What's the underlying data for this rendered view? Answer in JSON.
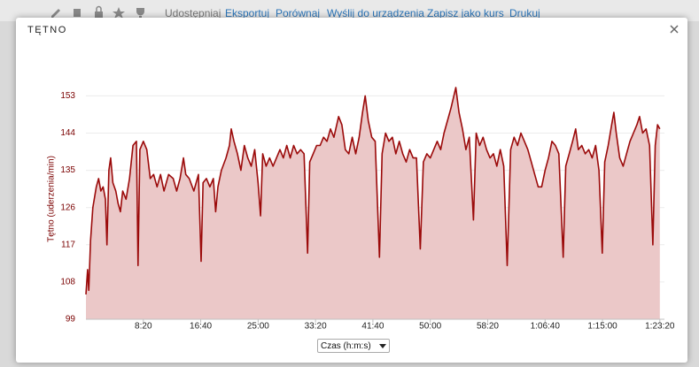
{
  "toolbar": {
    "items": [
      "Udostępniaj",
      "Eksportuj",
      "Porównaj",
      "Wyślij do urządzenia",
      "Zapisz jako kurs",
      "Drukuj"
    ]
  },
  "modal": {
    "title": "TĘTNO"
  },
  "x_selector": "Czas (h:m:s)",
  "chart_data": {
    "type": "area",
    "y_label": "Tętno (uderzenia/min)",
    "color": "#9b0a0a",
    "fill": "#ebc8c8",
    "grid": true,
    "xlim": [
      0,
      5040
    ],
    "ylim": [
      99,
      158
    ],
    "yticks": [
      99,
      108,
      117,
      126,
      135,
      144,
      153
    ],
    "xticks": [
      {
        "value": 500,
        "label": "8:20"
      },
      {
        "value": 1000,
        "label": "16:40"
      },
      {
        "value": 1500,
        "label": "25:00"
      },
      {
        "value": 2000,
        "label": "33:20"
      },
      {
        "value": 2500,
        "label": "41:40"
      },
      {
        "value": 3000,
        "label": "50:00"
      },
      {
        "value": 3500,
        "label": "58:20"
      },
      {
        "value": 4000,
        "label": "1:06:40"
      },
      {
        "value": 4500,
        "label": "1:15:00"
      },
      {
        "value": 5000,
        "label": "1:23:20"
      }
    ],
    "x": [
      0,
      15,
      25,
      40,
      60,
      90,
      110,
      130,
      150,
      170,
      183,
      200,
      215,
      235,
      260,
      280,
      300,
      320,
      350,
      380,
      410,
      440,
      454,
      470,
      500,
      530,
      560,
      590,
      620,
      650,
      680,
      720,
      760,
      790,
      820,
      850,
      870,
      900,
      940,
      980,
      1003,
      1020,
      1050,
      1080,
      1110,
      1130,
      1150,
      1180,
      1220,
      1250,
      1266,
      1290,
      1320,
      1350,
      1380,
      1410,
      1440,
      1470,
      1500,
      1521,
      1540,
      1570,
      1600,
      1630,
      1660,
      1690,
      1720,
      1750,
      1780,
      1810,
      1840,
      1870,
      1900,
      1931,
      1950,
      1980,
      2010,
      2040,
      2070,
      2100,
      2130,
      2160,
      2201,
      2230,
      2260,
      2290,
      2320,
      2350,
      2380,
      2410,
      2433,
      2460,
      2490,
      2520,
      2557,
      2580,
      2610,
      2640,
      2670,
      2700,
      2730,
      2760,
      2790,
      2820,
      2850,
      2880,
      2913,
      2940,
      2970,
      3000,
      3030,
      3060,
      3090,
      3120,
      3150,
      3180,
      3222,
      3250,
      3280,
      3310,
      3340,
      3376,
      3400,
      3430,
      3460,
      3490,
      3520,
      3550,
      3580,
      3610,
      3640,
      3670,
      3700,
      3730,
      3760,
      3790,
      3820,
      3850,
      3880,
      3910,
      3940,
      3970,
      4000,
      4030,
      4060,
      4090,
      4120,
      4158,
      4180,
      4210,
      4240,
      4267,
      4290,
      4320,
      4350,
      4380,
      4410,
      4440,
      4470,
      4498,
      4520,
      4550,
      4580,
      4599,
      4620,
      4650,
      4680,
      4710,
      4740,
      4770,
      4800,
      4823,
      4850,
      4880,
      4910,
      4939,
      4960,
      4980,
      5000
    ],
    "values": [
      105,
      111,
      106,
      118,
      126,
      131,
      133,
      130,
      131,
      128,
      117,
      135,
      138,
      132,
      130,
      127,
      125,
      130,
      128,
      133,
      141,
      142,
      112,
      140,
      142,
      140,
      133,
      134,
      131,
      134,
      130,
      134,
      133,
      130,
      133,
      138,
      134,
      133,
      130,
      134,
      113,
      132,
      133,
      131,
      133,
      125,
      131,
      135,
      138,
      141,
      145,
      142,
      139,
      135,
      141,
      138,
      136,
      140,
      132,
      124,
      139,
      136,
      138,
      136,
      138,
      140,
      138,
      141,
      138,
      141,
      139,
      140,
      139,
      115,
      137,
      139,
      141,
      141,
      143,
      142,
      145,
      143,
      148,
      146,
      140,
      139,
      143,
      139,
      143,
      149,
      153,
      147,
      143,
      142,
      114,
      139,
      144,
      142,
      143,
      139,
      142,
      139,
      137,
      140,
      138,
      138,
      116,
      137,
      139,
      138,
      140,
      142,
      140,
      144,
      147,
      150,
      155,
      149,
      145,
      140,
      143,
      123,
      144,
      141,
      143,
      140,
      138,
      139,
      136,
      140,
      136,
      112,
      140,
      143,
      141,
      144,
      142,
      140,
      137,
      134,
      131,
      131,
      135,
      138,
      142,
      141,
      139,
      114,
      136,
      139,
      142,
      145,
      140,
      141,
      139,
      140,
      138,
      141,
      135,
      115,
      137,
      141,
      146,
      149,
      144,
      138,
      136,
      139,
      142,
      144,
      146,
      148,
      144,
      145,
      141,
      117,
      141,
      146,
      145
    ]
  }
}
